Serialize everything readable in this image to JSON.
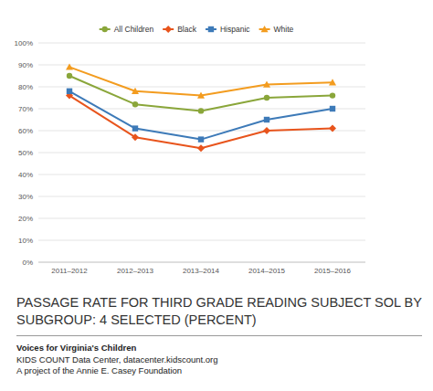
{
  "chart_data": {
    "type": "line",
    "title": "PASSAGE RATE FOR THIRD GRADE READING SUBJECT SOL BY SUBGROUP: 4 SELECTED (PERCENT)",
    "annotations": [
      "Voices for Virginia's Children",
      "KIDS COUNT Data Center, datacenter.kidscount.org",
      "A project of the Annie E. Casey Foundation"
    ],
    "categories": [
      "2011–2012",
      "2012–2013",
      "2013–2014",
      "2014–2015",
      "2015–2016"
    ],
    "series": [
      {
        "name": "All Children",
        "color": "#8aa63a",
        "marker": "circle",
        "values": [
          85,
          72,
          69,
          75,
          76
        ]
      },
      {
        "name": "Black",
        "color": "#e8541c",
        "marker": "diamond",
        "values": [
          76,
          57,
          52,
          60,
          61
        ]
      },
      {
        "name": "Hispanic",
        "color": "#3d7ab8",
        "marker": "square",
        "values": [
          78,
          61,
          56,
          65,
          70
        ]
      },
      {
        "name": "White",
        "color": "#f39c1f",
        "marker": "triangle",
        "values": [
          89,
          78,
          76,
          81,
          82
        ]
      }
    ],
    "ylim": [
      0,
      100
    ],
    "yticks": [
      {
        "value": 0,
        "label": "0%"
      },
      {
        "value": 10,
        "label": "10%"
      },
      {
        "value": 20,
        "label": "20%"
      },
      {
        "value": 30,
        "label": "30%"
      },
      {
        "value": 40,
        "label": "40%"
      },
      {
        "value": 50,
        "label": "50%"
      },
      {
        "value": 60,
        "label": "60%"
      },
      {
        "value": 70,
        "label": "70%"
      },
      {
        "value": 80,
        "label": "80%"
      },
      {
        "value": 90,
        "label": "90%"
      },
      {
        "value": 100,
        "label": "100%"
      }
    ],
    "grid": true,
    "legend": "top"
  }
}
